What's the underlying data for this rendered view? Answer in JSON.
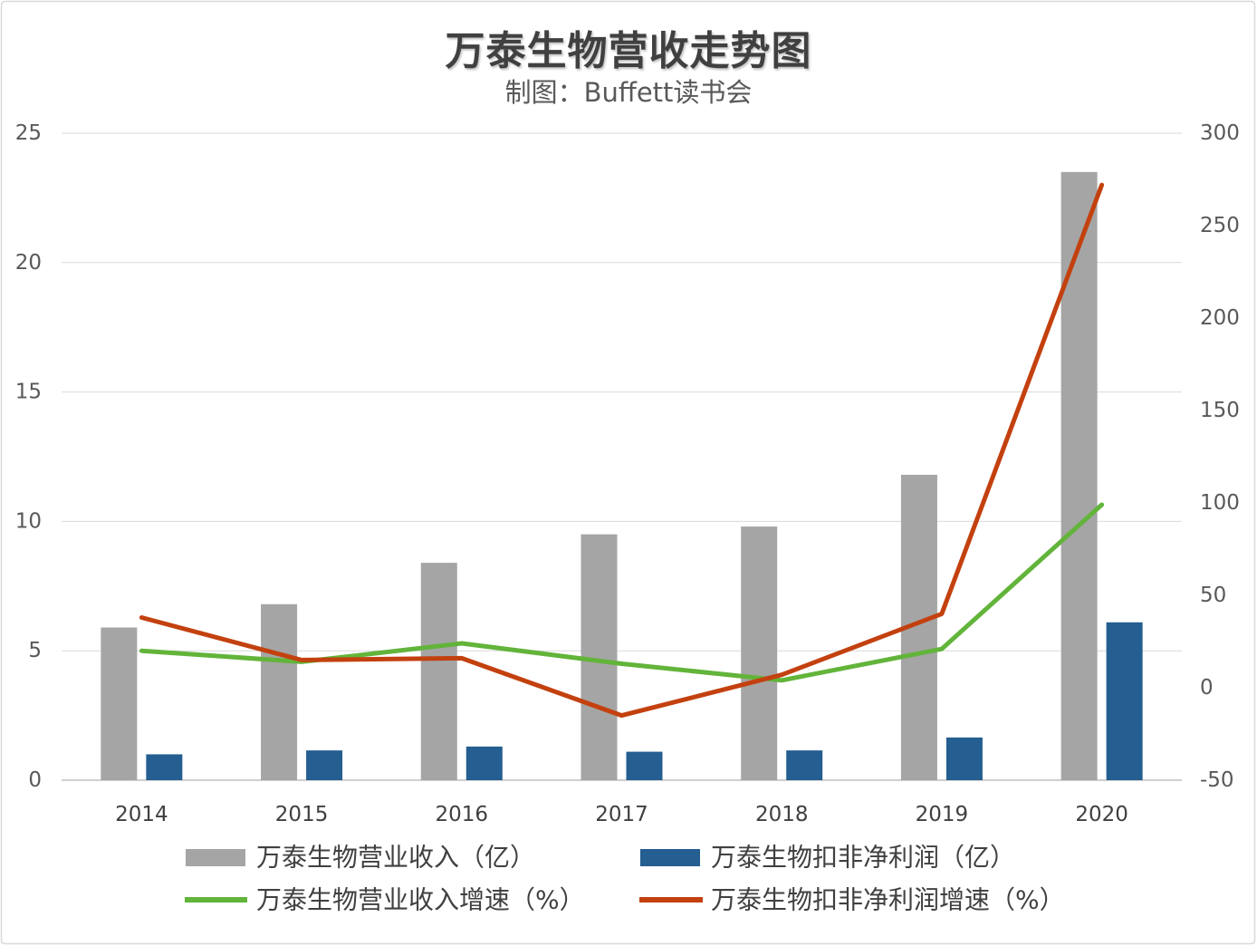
{
  "chart_data": {
    "type": "bar",
    "title": "万泰生物营收走势图",
    "subtitle": "制图：Buffett读书会",
    "categories": [
      "2014",
      "2015",
      "2016",
      "2017",
      "2018",
      "2019",
      "2020"
    ],
    "series": [
      {
        "name": "万泰生物营业收入（亿）",
        "type": "bar",
        "axis": "left",
        "color": "#a5a5a5",
        "values": [
          5.9,
          6.8,
          8.4,
          9.5,
          9.8,
          11.8,
          23.5
        ]
      },
      {
        "name": "万泰生物扣非净利润（亿）",
        "type": "bar",
        "axis": "left",
        "color": "#255e91",
        "values": [
          1.0,
          1.15,
          1.3,
          1.1,
          1.15,
          1.65,
          6.1
        ]
      },
      {
        "name": "万泰生物营业收入增速（%）",
        "type": "line",
        "axis": "right",
        "color": "#62b43a",
        "values": [
          20,
          14,
          24,
          13,
          4,
          21,
          99
        ]
      },
      {
        "name": "万泰生物扣非净利润增速（%）",
        "type": "line",
        "axis": "right",
        "color": "#c3410f",
        "values": [
          38,
          15,
          16,
          -15,
          7,
          40,
          272
        ]
      }
    ],
    "y_left": {
      "ylim": [
        0,
        25
      ],
      "ticks": [
        0,
        5,
        10,
        15,
        20,
        25
      ]
    },
    "y_right": {
      "ylim": [
        -50,
        300
      ],
      "ticks": [
        -50,
        0,
        50,
        100,
        150,
        200,
        250,
        300
      ]
    },
    "grid": true,
    "legend": "bottom"
  }
}
